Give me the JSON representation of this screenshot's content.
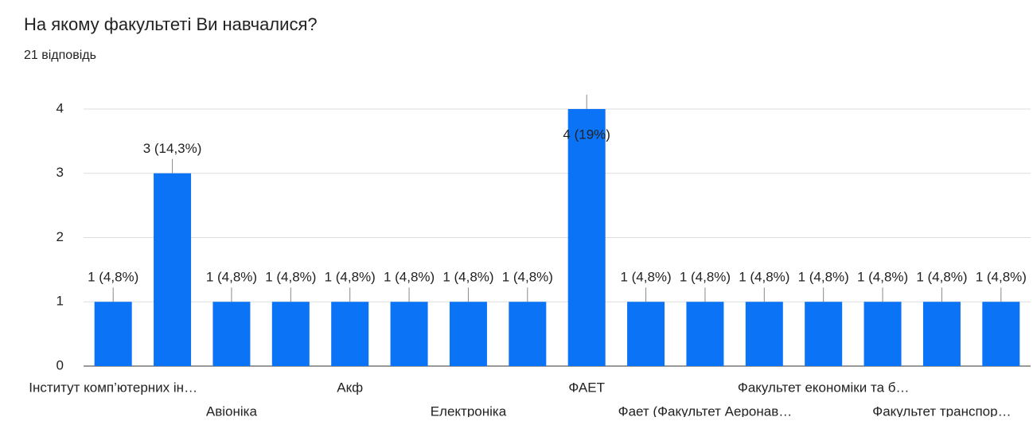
{
  "chart_data": {
    "type": "bar",
    "title": "На якому факультеті Ви навчалися?",
    "subtitle": "21 відповідь",
    "categories": [
      "Інститут комп’ютерних ін…",
      null,
      "Авіоніка",
      null,
      "Акф",
      null,
      "Електроніка",
      null,
      "ФАЕТ",
      null,
      "Фает (Факультет Аеронав…",
      null,
      "Факультет економіки та б…",
      null,
      "Факультет транспор…",
      null
    ],
    "values": [
      1,
      3,
      1,
      1,
      1,
      1,
      1,
      1,
      4,
      1,
      1,
      1,
      1,
      1,
      1,
      1
    ],
    "value_labels": [
      "1 (4,8%)",
      "3 (14,3%)",
      "1 (4,8%)",
      "1 (4,8%)",
      "1 (4,8%)",
      "1 (4,8%)",
      "1 (4,8%)",
      "1 (4,8%)",
      "4 (19%)",
      "1 (4,8%)",
      "1 (4,8%)",
      "1 (4,8%)",
      "1 (4,8%)",
      "1 (4,8%)",
      "1 (4,8%)",
      "1 (4,8%)"
    ],
    "color": "#0b73f5",
    "ylim": [
      0,
      4
    ],
    "yticks": [
      0,
      1,
      2,
      3,
      4
    ],
    "grid": true
  }
}
